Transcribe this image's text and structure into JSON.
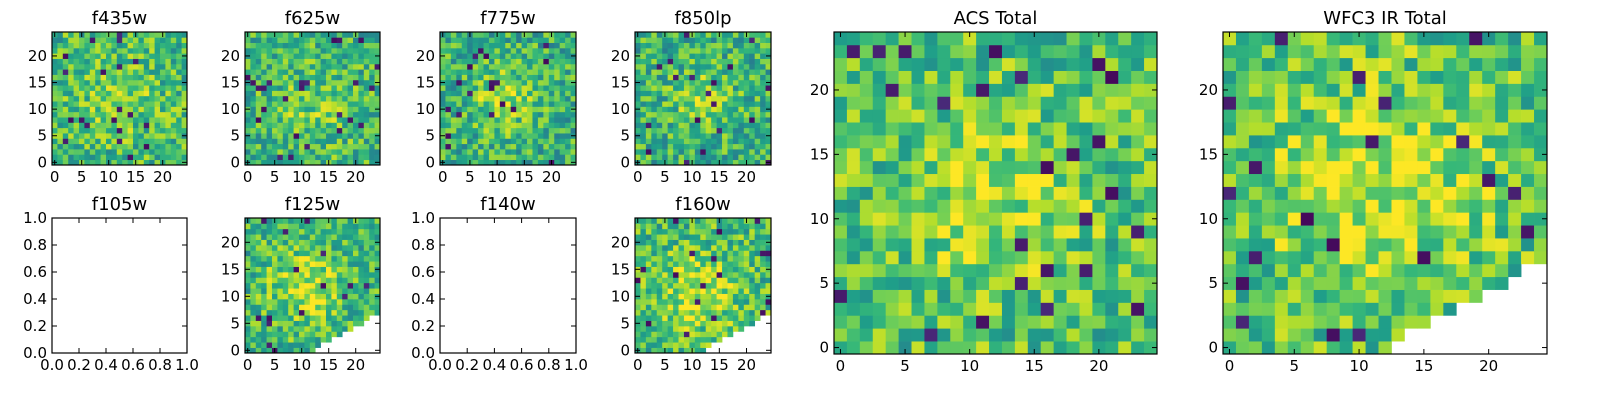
{
  "chart_data": [
    {
      "type": "heatmap",
      "title": "f435w",
      "xticks": [
        "0",
        "5",
        "10",
        "15",
        "20"
      ],
      "yticks": [
        "0",
        "5",
        "10",
        "15",
        "20"
      ],
      "xlim": [
        0,
        25
      ],
      "ylim": [
        0,
        25
      ],
      "grid_n": 25,
      "cutoff": "none",
      "colormap": "viridis",
      "seed": 11,
      "base": 0.68,
      "blob": {
        "cx": 12,
        "cy": 12,
        "amp": 0.12,
        "r": 5
      }
    },
    {
      "type": "heatmap",
      "title": "f625w",
      "xticks": [
        "0",
        "5",
        "10",
        "15",
        "20"
      ],
      "yticks": [
        "0",
        "5",
        "10",
        "15",
        "20"
      ],
      "xlim": [
        0,
        25
      ],
      "ylim": [
        0,
        25
      ],
      "grid_n": 25,
      "cutoff": "none",
      "colormap": "viridis",
      "seed": 23,
      "base": 0.66,
      "blob": {
        "cx": 12,
        "cy": 10,
        "amp": 0.12,
        "r": 5
      }
    },
    {
      "type": "heatmap",
      "title": "f775w",
      "xticks": [
        "0",
        "5",
        "10",
        "15",
        "20"
      ],
      "yticks": [
        "0",
        "5",
        "10",
        "15",
        "20"
      ],
      "xlim": [
        0,
        25
      ],
      "ylim": [
        0,
        25
      ],
      "grid_n": 25,
      "cutoff": "none",
      "colormap": "viridis",
      "seed": 37,
      "base": 0.64,
      "blob": {
        "cx": 11,
        "cy": 12,
        "amp": 0.22,
        "r": 4
      }
    },
    {
      "type": "heatmap",
      "title": "f850lp",
      "xticks": [
        "0",
        "5",
        "10",
        "15",
        "20"
      ],
      "yticks": [
        "0",
        "5",
        "10",
        "15",
        "20"
      ],
      "xlim": [
        0,
        25
      ],
      "ylim": [
        0,
        25
      ],
      "grid_n": 25,
      "cutoff": "none",
      "colormap": "viridis",
      "seed": 41,
      "base": 0.64,
      "blob": {
        "cx": 12,
        "cy": 12,
        "amp": 0.18,
        "r": 4
      }
    },
    {
      "type": "blank",
      "title": "f105w",
      "xticks": [
        "0.0",
        "0.2",
        "0.4",
        "0.6",
        "0.8",
        "1.0"
      ],
      "yticks": [
        "0.0",
        "0.2",
        "0.4",
        "0.6",
        "0.8",
        "1.0"
      ],
      "xlim": [
        0,
        1
      ],
      "ylim": [
        0,
        1
      ]
    },
    {
      "type": "heatmap",
      "title": "f125w",
      "xticks": [
        "0",
        "5",
        "10",
        "15",
        "20"
      ],
      "yticks": [
        "0",
        "5",
        "10",
        "15",
        "20"
      ],
      "xlim": [
        0,
        25
      ],
      "ylim": [
        0,
        25
      ],
      "grid_n": 25,
      "cutoff": "diag",
      "colormap": "viridis",
      "seed": 53,
      "base": 0.66,
      "blob": {
        "cx": 11,
        "cy": 12,
        "amp": 0.24,
        "r": 5
      }
    },
    {
      "type": "blank",
      "title": "f140w",
      "xticks": [
        "0.0",
        "0.2",
        "0.4",
        "0.6",
        "0.8",
        "1.0"
      ],
      "yticks": [
        "0.0",
        "0.2",
        "0.4",
        "0.6",
        "0.8",
        "1.0"
      ],
      "xlim": [
        0,
        1
      ],
      "ylim": [
        0,
        1
      ]
    },
    {
      "type": "heatmap",
      "title": "f160w",
      "xticks": [
        "0",
        "5",
        "10",
        "15",
        "20"
      ],
      "yticks": [
        "0",
        "5",
        "10",
        "15",
        "20"
      ],
      "xlim": [
        0,
        25
      ],
      "ylim": [
        0,
        25
      ],
      "grid_n": 25,
      "cutoff": "diag",
      "colormap": "viridis",
      "seed": 61,
      "base": 0.68,
      "blob": {
        "cx": 11,
        "cy": 11,
        "amp": 0.24,
        "r": 5
      }
    },
    {
      "type": "heatmap",
      "title": "ACS Total",
      "xticks": [
        "0",
        "5",
        "10",
        "15",
        "20"
      ],
      "yticks": [
        "0",
        "5",
        "10",
        "15",
        "20"
      ],
      "xlim": [
        0,
        25
      ],
      "ylim": [
        0,
        25
      ],
      "grid_n": 25,
      "cutoff": "none",
      "colormap": "viridis",
      "seed": 71,
      "base": 0.7,
      "blob": {
        "cx": 12,
        "cy": 12,
        "amp": 0.18,
        "r": 5
      }
    },
    {
      "type": "heatmap",
      "title": "WFC3 IR Total",
      "xticks": [
        "0",
        "5",
        "10",
        "15",
        "20"
      ],
      "yticks": [
        "0",
        "5",
        "10",
        "15",
        "20"
      ],
      "xlim": [
        0,
        25
      ],
      "ylim": [
        0,
        25
      ],
      "grid_n": 25,
      "cutoff": "diag",
      "colormap": "viridis",
      "seed": 83,
      "base": 0.7,
      "blob": {
        "cx": 12,
        "cy": 12,
        "amp": 0.22,
        "r": 6
      }
    }
  ]
}
